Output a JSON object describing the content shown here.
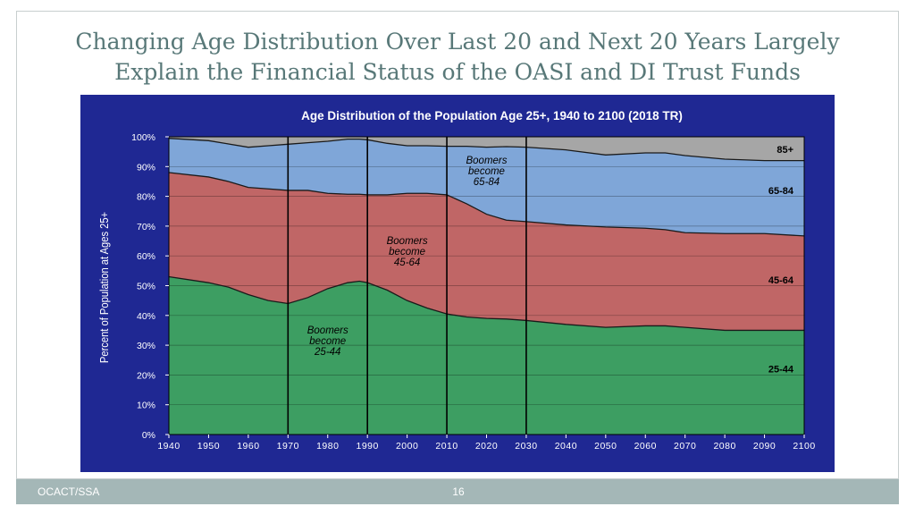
{
  "slide": {
    "title_line1": "Changing Age Distribution Over Last 20 and Next 20 Years Largely",
    "title_line2": "Explain the Financial Status of the OASI and DI Trust Funds",
    "footer_left": "OCACT/SSA",
    "page_number": "16"
  },
  "chart_data": {
    "type": "area",
    "stacked": true,
    "title": "Age Distribution  of the Population Age 25+, 1940 to 2100 (2018 TR)",
    "xlabel": "",
    "ylabel": "Percent of Population at Ages 25+",
    "xlim": [
      1940,
      2100
    ],
    "ylim": [
      0,
      100
    ],
    "grid": true,
    "x": [
      1940,
      1950,
      1955,
      1960,
      1965,
      1970,
      1975,
      1980,
      1985,
      1988,
      1990,
      1995,
      2000,
      2005,
      2010,
      2015,
      2020,
      2025,
      2030,
      2040,
      2050,
      2060,
      2065,
      2070,
      2080,
      2090,
      2100
    ],
    "x_ticks": [
      1940,
      1950,
      1960,
      1970,
      1980,
      1990,
      2000,
      2010,
      2020,
      2030,
      2040,
      2050,
      2060,
      2070,
      2080,
      2090,
      2100
    ],
    "x_tick_labels": [
      "1940",
      "1950",
      "1960",
      "1970",
      "1980",
      "1990",
      "2000",
      "2010",
      "2020",
      "2030",
      "2040",
      "2050",
      "2060",
      "2070",
      "2080",
      "2090",
      "2100"
    ],
    "y_ticks": [
      0,
      10,
      20,
      30,
      40,
      50,
      60,
      70,
      80,
      90,
      100
    ],
    "y_tick_labels": [
      "0%",
      "10%",
      "20%",
      "30%",
      "40%",
      "50%",
      "60%",
      "70%",
      "80%",
      "90%",
      "100%"
    ],
    "series": [
      {
        "name": "25-44",
        "color": "#3d9e62",
        "values": [
          53,
          51,
          49.5,
          47,
          45,
          44,
          46,
          49,
          51,
          51.5,
          51,
          48.5,
          45,
          42.5,
          40.5,
          39.5,
          39,
          38.8,
          38.3,
          37,
          36,
          36.5,
          36.5,
          36,
          35,
          35,
          35
        ]
      },
      {
        "name": "45-64",
        "color": "#c06666",
        "values": [
          35,
          35.5,
          35.5,
          36,
          37.5,
          38,
          36,
          32,
          29.7,
          29.2,
          29.5,
          32,
          36,
          38.5,
          40,
          38,
          35,
          33.2,
          33.2,
          33.4,
          33.7,
          32.8,
          32.3,
          31.8,
          32.5,
          32.5,
          31.7
        ]
      },
      {
        "name": "65-84",
        "color": "#7fa6d8",
        "values": [
          11.5,
          12.2,
          12.6,
          13.5,
          14.5,
          15.5,
          16,
          17.5,
          18.5,
          18.5,
          18.5,
          17.3,
          16,
          16,
          16.3,
          19.3,
          22.5,
          24.7,
          25,
          25.2,
          24.2,
          25.3,
          25.8,
          25.9,
          25,
          24.5,
          25.3
        ]
      },
      {
        "name": "85+",
        "color": "#a6a6a6",
        "values": [
          0.5,
          1.3,
          2.4,
          3.5,
          3,
          2.5,
          2,
          1.5,
          0.8,
          0.8,
          1,
          2.2,
          3,
          3,
          3.2,
          3.2,
          3.5,
          3.3,
          3.5,
          4.4,
          6.1,
          5.4,
          5.4,
          6.3,
          7.5,
          8,
          8
        ]
      }
    ],
    "series_labels": {
      "25-44": "25-44",
      "45-64": "45-64",
      "65-84": "65-84",
      "85+": "85+"
    },
    "reference_lines_x": [
      1970,
      1990,
      2010,
      2030
    ],
    "annotations": [
      {
        "text_lines": [
          "Boomers",
          "become",
          "25-44"
        ],
        "x": 1980,
        "y": 34
      },
      {
        "text_lines": [
          "Boomers",
          "become",
          "45-64"
        ],
        "x": 2000,
        "y": 64
      },
      {
        "text_lines": [
          "Boomers",
          "become",
          "65-84"
        ],
        "x": 2020,
        "y": 91
      }
    ]
  }
}
